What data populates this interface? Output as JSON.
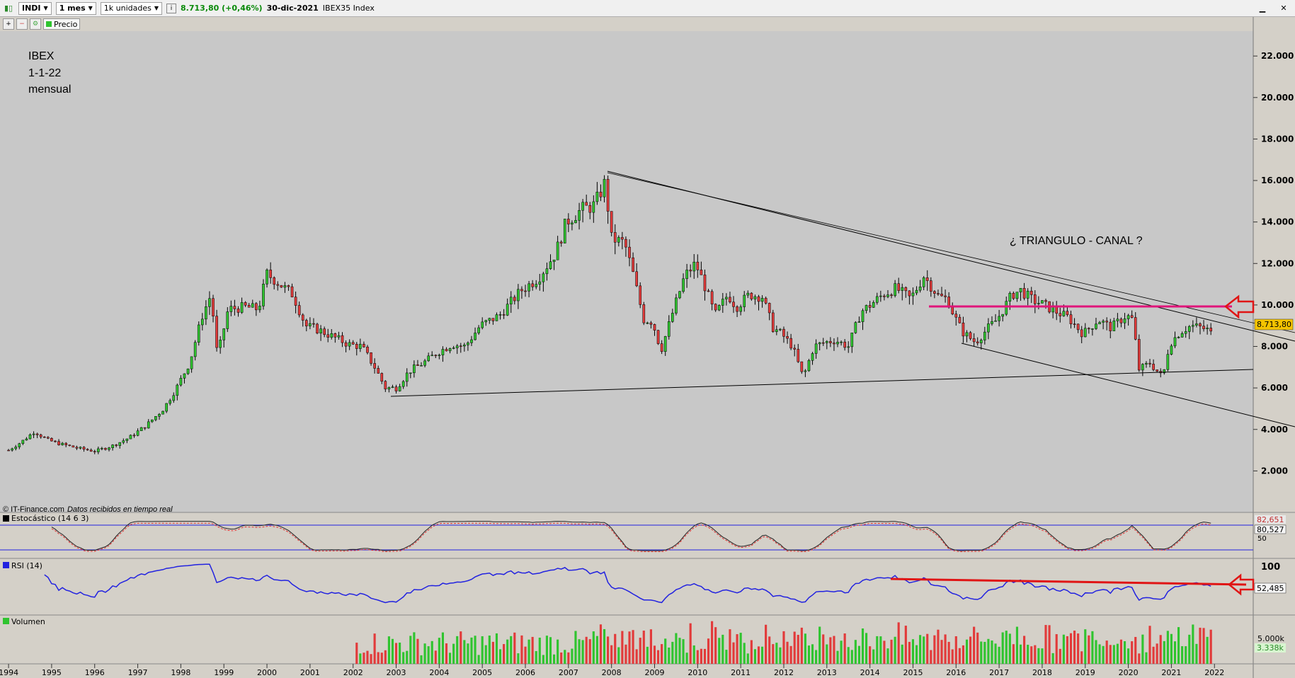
{
  "toolbar": {
    "symbol": "INDI",
    "timeframe": "1 mes",
    "units": "1k unidades",
    "quote": "8.713,80 (+0,46%)",
    "date": "30-dic-2021",
    "instrument": "IBEX35 Index",
    "price_tab": "Precio"
  },
  "annotations": {
    "title_line1": "IBEX",
    "title_line2": "1-1-22",
    "title_line3": "mensual",
    "pattern": "¿ TRIANGULO - CANAL ?",
    "source_prefix": "© IT-Finance.com",
    "source_suffix": "Datos recibidos en tiempo real"
  },
  "chart_data": [
    {
      "type": "candlestick",
      "y_ticks": [
        "22.000",
        "20.000",
        "18.000",
        "16.000",
        "14.000",
        "12.000",
        "10.000",
        "8.000",
        "6.000",
        "4.000",
        "2.000"
      ],
      "x_ticks": [
        "1994",
        "1995",
        "1996",
        "1997",
        "1998",
        "1999",
        "2000",
        "2001",
        "2002",
        "2003",
        "2004",
        "2005",
        "2006",
        "2007",
        "2008",
        "2009",
        "2010",
        "2011",
        "2012",
        "2013",
        "2014",
        "2015",
        "2016",
        "2017",
        "2018",
        "2019",
        "2020",
        "2021",
        "2022"
      ],
      "ylim": [
        0,
        23200
      ],
      "xlim": [
        1993.9,
        2022.9
      ],
      "last_price_label": "8.713,80",
      "close_path": [
        [
          1994.0,
          3000
        ],
        [
          1994.3,
          3400
        ],
        [
          1994.6,
          3900
        ],
        [
          1994.9,
          3500
        ],
        [
          1995.2,
          3300
        ],
        [
          1995.6,
          3100
        ],
        [
          1996.0,
          2950
        ],
        [
          1996.4,
          3200
        ],
        [
          1996.8,
          3600
        ],
        [
          1997.2,
          4200
        ],
        [
          1997.6,
          5000
        ],
        [
          1997.9,
          6000
        ],
        [
          1998.2,
          7200
        ],
        [
          1998.5,
          9500
        ],
        [
          1998.7,
          10500
        ],
        [
          1998.85,
          7500
        ],
        [
          1999.1,
          9800
        ],
        [
          1999.5,
          9900
        ],
        [
          1999.8,
          9800
        ],
        [
          2000.0,
          11500
        ],
        [
          2000.3,
          11000
        ],
        [
          2000.6,
          10500
        ],
        [
          2000.9,
          9000
        ],
        [
          2001.2,
          8800
        ],
        [
          2001.6,
          8400
        ],
        [
          2001.9,
          8100
        ],
        [
          2002.2,
          8000
        ],
        [
          2002.5,
          7000
        ],
        [
          2002.75,
          6000
        ],
        [
          2003.0,
          6000
        ],
        [
          2003.3,
          6800
        ],
        [
          2003.7,
          7300
        ],
        [
          2003.95,
          7700
        ],
        [
          2004.3,
          8100
        ],
        [
          2004.6,
          8000
        ],
        [
          2004.95,
          9000
        ],
        [
          2005.4,
          9500
        ],
        [
          2005.9,
          10700
        ],
        [
          2006.3,
          11300
        ],
        [
          2006.7,
          12500
        ],
        [
          2006.95,
          14000
        ],
        [
          2007.3,
          14600
        ],
        [
          2007.6,
          14800
        ],
        [
          2007.85,
          15900
        ],
        [
          2008.0,
          13200
        ],
        [
          2008.3,
          13000
        ],
        [
          2008.5,
          11500
        ],
        [
          2008.75,
          9300
        ],
        [
          2008.95,
          9200
        ],
        [
          2009.15,
          7800
        ],
        [
          2009.4,
          9500
        ],
        [
          2009.7,
          11400
        ],
        [
          2009.95,
          12000
        ],
        [
          2010.15,
          11000
        ],
        [
          2010.4,
          9500
        ],
        [
          2010.7,
          10500
        ],
        [
          2010.9,
          9900
        ],
        [
          2011.2,
          10500
        ],
        [
          2011.5,
          10400
        ],
        [
          2011.75,
          8900
        ],
        [
          2011.95,
          8600
        ],
        [
          2012.2,
          8000
        ],
        [
          2012.45,
          6500
        ],
        [
          2012.7,
          8000
        ],
        [
          2012.95,
          8200
        ],
        [
          2013.2,
          8300
        ],
        [
          2013.5,
          8000
        ],
        [
          2013.8,
          9700
        ],
        [
          2013.95,
          9900
        ],
        [
          2014.3,
          10500
        ],
        [
          2014.6,
          10800
        ],
        [
          2014.95,
          10300
        ],
        [
          2015.25,
          11400
        ],
        [
          2015.6,
          10400
        ],
        [
          2015.8,
          10300
        ],
        [
          2015.95,
          9500
        ],
        [
          2016.15,
          8700
        ],
        [
          2016.45,
          8200
        ],
        [
          2016.75,
          8900
        ],
        [
          2016.95,
          9300
        ],
        [
          2017.3,
          10500
        ],
        [
          2017.5,
          10700
        ],
        [
          2017.8,
          10200
        ],
        [
          2017.95,
          10100
        ],
        [
          2018.3,
          9700
        ],
        [
          2018.6,
          9400
        ],
        [
          2018.95,
          8600
        ],
        [
          2019.3,
          9300
        ],
        [
          2019.6,
          8900
        ],
        [
          2019.95,
          9500
        ],
        [
          2020.1,
          9300
        ],
        [
          2020.25,
          6900
        ],
        [
          2020.5,
          7200
        ],
        [
          2020.8,
          6500
        ],
        [
          2020.95,
          8100
        ],
        [
          2021.2,
          8700
        ],
        [
          2021.45,
          9000
        ],
        [
          2021.7,
          8900
        ],
        [
          2021.95,
          8713
        ]
      ]
    },
    {
      "type": "line",
      "name": "Estocástico (14 6 3)",
      "levels": [
        "80",
        "50"
      ],
      "value_labels": [
        "82,651",
        "80,527"
      ]
    },
    {
      "type": "line",
      "name": "RSI (14)",
      "levels": [
        "100"
      ],
      "value_labels": [
        "52,485"
      ]
    },
    {
      "type": "bar",
      "name": "Volumen",
      "axis_label": "5.000k",
      "value_labels": [
        "3.338k"
      ]
    }
  ],
  "colors": {
    "up": "#2fc42f",
    "down": "#e23a3a",
    "magenta": "#e0157a",
    "rsi": "#2222e0",
    "rsi_trend": "#e01515"
  }
}
